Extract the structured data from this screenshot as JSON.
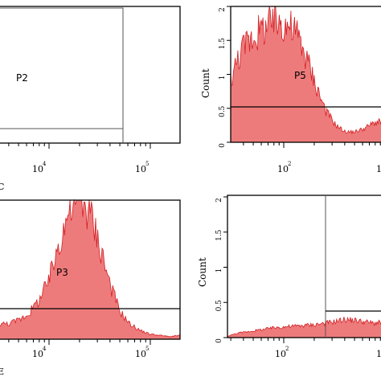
{
  "colors": {
    "fill": "#ee7b7b",
    "stroke": "#d21f24",
    "frame": "#000000",
    "gateline": "#555555"
  },
  "chart_data": [
    {
      "type": "dot-plot",
      "panel": "top-left",
      "gate_label": "P2",
      "x_ticks": [
        "10",
        "10"
      ],
      "x_tick_exps": [
        "4",
        "5"
      ],
      "x_label_fragment": "C",
      "grid": false
    },
    {
      "type": "area",
      "panel": "top-right",
      "gate_label": "P5",
      "ylabel": "Count",
      "y_ticks": [
        "0",
        "0.5",
        "1",
        "1.5",
        "2"
      ],
      "ylim": [
        0,
        2
      ],
      "x_ticks": [
        "10"
      ],
      "x_tick_exps": [
        "2"
      ],
      "x_tick_right_fragment": "1",
      "gate_level": 0.5,
      "x_decades": [
        1,
        2.6
      ],
      "x": [
        1.0,
        1.1,
        1.2,
        1.3,
        1.4,
        1.5,
        1.6,
        1.7,
        1.8,
        1.9,
        2.0,
        2.1,
        2.2,
        2.3,
        2.4,
        2.5,
        2.6
      ],
      "y": [
        0.9,
        1.3,
        1.5,
        1.6,
        1.7,
        1.75,
        1.7,
        1.55,
        1.2,
        0.8,
        0.45,
        0.25,
        0.15,
        0.15,
        0.2,
        0.28,
        0.3
      ]
    },
    {
      "type": "area",
      "panel": "bottom-left",
      "gate_label": "P3",
      "x_ticks": [
        "10",
        "10"
      ],
      "x_tick_exps": [
        "4",
        "5"
      ],
      "x_label_fragment": "E",
      "gate_level": 0.25,
      "x_decades": [
        3.6,
        5.4
      ],
      "x": [
        3.6,
        3.7,
        3.8,
        3.9,
        4.0,
        4.1,
        4.2,
        4.3,
        4.4,
        4.5,
        4.6,
        4.7,
        4.8,
        4.9,
        5.0,
        5.1,
        5.2,
        5.3,
        5.4
      ],
      "y": [
        0.12,
        0.12,
        0.15,
        0.2,
        0.3,
        0.45,
        0.75,
        1.0,
        1.1,
        1.0,
        0.75,
        0.45,
        0.22,
        0.12,
        0.07,
        0.04,
        0.03,
        0.02,
        0.03
      ]
    },
    {
      "type": "area",
      "panel": "bottom-right",
      "ylabel": "Count",
      "y_ticks": [
        "0",
        "0.5",
        "1",
        "1.5",
        "2"
      ],
      "ylim": [
        0,
        2
      ],
      "x_ticks": [
        "10"
      ],
      "x_tick_exps": [
        "2"
      ],
      "x_tick_right_fragment": "1",
      "gate_level": 0.2,
      "x_decades": [
        1,
        2.6
      ],
      "x": [
        1.0,
        1.1,
        1.2,
        1.3,
        1.4,
        1.5,
        1.6,
        1.7,
        1.8,
        1.9,
        2.0,
        2.1,
        2.2,
        2.3,
        2.4,
        2.5,
        2.6
      ],
      "y": [
        0.02,
        0.06,
        0.08,
        0.1,
        0.12,
        0.14,
        0.15,
        0.16,
        0.17,
        0.18,
        0.2,
        0.22,
        0.25,
        0.24,
        0.22,
        0.2,
        0.21
      ]
    }
  ]
}
